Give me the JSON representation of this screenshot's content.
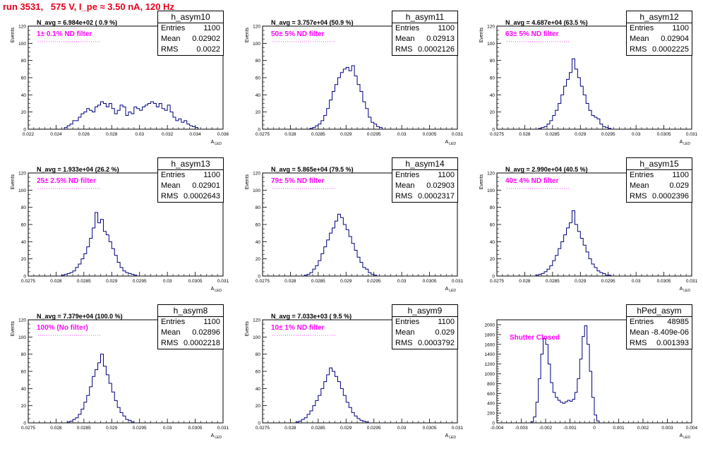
{
  "page": {
    "title": "run 3531,   575 V, I_pe ≈ 3.50 nA, 120 Hz"
  },
  "chart_data": [
    {
      "type": "histogram",
      "name": "h_asym10",
      "xlabel": "A_LED",
      "ylabel": "Events",
      "xlim": [
        0.022,
        0.036
      ],
      "ylim": [
        0,
        120
      ],
      "xticks": [
        0.022,
        0.024,
        0.026,
        0.028,
        0.03,
        0.032,
        0.034,
        0.036
      ],
      "xticklabels": [
        "0.022",
        "0.024",
        "0.026",
        "0.028",
        "0.03",
        "0.032",
        "0.034",
        "0.036"
      ],
      "yticks": [
        0,
        20,
        40,
        60,
        80,
        100,
        120
      ],
      "stats": {
        "entries": "1100",
        "mean": "0.02902",
        "rms": "0.0022"
      },
      "navg": "N_avg = 6.984e+02 ( 0.9 %)",
      "filter": "1± 0.1% ND filter",
      "filter_dots": true,
      "bins_start": 0.0246,
      "bin_width": 0.0002,
      "counts": [
        2,
        4,
        6,
        10,
        10,
        14,
        18,
        20,
        24,
        22,
        20,
        26,
        28,
        32,
        30,
        26,
        30,
        24,
        18,
        22,
        28,
        26,
        16,
        20,
        18,
        26,
        24,
        22,
        26,
        28,
        30,
        32,
        30,
        26,
        30,
        24,
        22,
        28,
        20,
        14,
        10,
        12,
        8,
        10,
        6,
        4,
        3,
        2
      ]
    },
    {
      "type": "histogram",
      "name": "h_asym11",
      "xlabel": "A_LED",
      "ylabel": "Events",
      "xlim": [
        0.0275,
        0.031
      ],
      "ylim": [
        0,
        120
      ],
      "xticks": [
        0.0275,
        0.028,
        0.0285,
        0.029,
        0.0295,
        0.03,
        0.0305,
        0.031
      ],
      "xticklabels": [
        "0.0275",
        "0.028",
        "0.0285",
        "0.029",
        "0.0295",
        "0.03",
        "0.0305",
        "0.031"
      ],
      "yticks": [
        0,
        20,
        40,
        60,
        80,
        100,
        120
      ],
      "stats": {
        "entries": "1100",
        "mean": "0.02913",
        "rms": "0.0002126"
      },
      "navg": "N_avg = 3.757e+04 (50.9 %)",
      "filter": "50± 5% ND filter",
      "filter_dots": true,
      "bins_start": 0.02835,
      "bin_width": 5e-05,
      "counts": [
        1,
        2,
        4,
        6,
        10,
        16,
        24,
        34,
        44,
        52,
        60,
        66,
        70,
        72,
        68,
        74,
        62,
        52,
        44,
        32,
        24,
        14,
        8,
        6,
        3,
        2
      ]
    },
    {
      "type": "histogram",
      "name": "h_asym12",
      "xlabel": "A_LED",
      "ylabel": "Events",
      "xlim": [
        0.0275,
        0.031
      ],
      "ylim": [
        0,
        120
      ],
      "xticks": [
        0.0275,
        0.028,
        0.0285,
        0.029,
        0.0295,
        0.03,
        0.0305,
        0.031
      ],
      "xticklabels": [
        "0.0275",
        "0.028",
        "0.0285",
        "0.029",
        "0.0295",
        "0.03",
        "0.0305",
        "0.031"
      ],
      "yticks": [
        0,
        20,
        40,
        60,
        80,
        100,
        120
      ],
      "stats": {
        "entries": "1100",
        "mean": "0.02904",
        "rms": "0.0002225"
      },
      "navg": "N_avg = 4.687e+04 (63.5 %)",
      "filter": "63± 5% ND filter",
      "filter_dots": true,
      "bins_start": 0.02825,
      "bin_width": 5e-05,
      "counts": [
        1,
        2,
        3,
        6,
        10,
        16,
        22,
        30,
        40,
        50,
        58,
        66,
        82,
        70,
        60,
        50,
        40,
        30,
        22,
        16,
        14,
        12,
        6,
        3,
        2,
        1
      ]
    },
    {
      "type": "histogram",
      "name": "h_asym13",
      "xlabel": "A_LED",
      "ylabel": "Events",
      "xlim": [
        0.0275,
        0.031
      ],
      "ylim": [
        0,
        120
      ],
      "xticks": [
        0.0275,
        0.028,
        0.0285,
        0.029,
        0.0295,
        0.03,
        0.0305,
        0.031
      ],
      "xticklabels": [
        "0.0275",
        "0.028",
        "0.0285",
        "0.029",
        "0.0295",
        "0.03",
        "0.0305",
        "0.031"
      ],
      "yticks": [
        0,
        20,
        40,
        60,
        80,
        100,
        120
      ],
      "stats": {
        "entries": "1100",
        "mean": "0.02901",
        "rms": "0.0002643"
      },
      "navg": "N_avg = 1.933e+04 (26.2 %)",
      "filter": "25± 2.5% ND filter",
      "filter_dots": true,
      "bins_start": 0.0281,
      "bin_width": 5e-05,
      "counts": [
        1,
        2,
        3,
        4,
        6,
        10,
        14,
        20,
        26,
        34,
        44,
        56,
        74,
        62,
        66,
        52,
        48,
        40,
        32,
        24,
        16,
        10,
        6,
        4,
        3,
        2,
        1
      ]
    },
    {
      "type": "histogram",
      "name": "h_asym14",
      "xlabel": "A_LED",
      "ylabel": "Events",
      "xlim": [
        0.0275,
        0.031
      ],
      "ylim": [
        0,
        120
      ],
      "xticks": [
        0.0275,
        0.028,
        0.0285,
        0.029,
        0.0295,
        0.03,
        0.0305,
        0.031
      ],
      "xticklabels": [
        "0.0275",
        "0.028",
        "0.0285",
        "0.029",
        "0.0295",
        "0.03",
        "0.0305",
        "0.031"
      ],
      "yticks": [
        0,
        20,
        40,
        60,
        80,
        100,
        120
      ],
      "stats": {
        "entries": "1100",
        "mean": "0.02903",
        "rms": "0.0002317"
      },
      "navg": "N_avg = 5.865e+04 (79.5 %)",
      "filter": "79± 5% ND filter",
      "filter_dots": true,
      "bins_start": 0.02825,
      "bin_width": 5e-05,
      "counts": [
        1,
        2,
        4,
        8,
        12,
        18,
        26,
        34,
        42,
        50,
        56,
        64,
        72,
        68,
        60,
        54,
        46,
        38,
        30,
        22,
        16,
        10,
        8,
        4,
        2,
        1
      ]
    },
    {
      "type": "histogram",
      "name": "h_asym15",
      "xlabel": "A_LED",
      "ylabel": "Events",
      "xlim": [
        0.0275,
        0.031
      ],
      "ylim": [
        0,
        120
      ],
      "xticks": [
        0.0275,
        0.028,
        0.0285,
        0.029,
        0.0295,
        0.03,
        0.0305,
        0.031
      ],
      "xticklabels": [
        "0.0275",
        "0.028",
        "0.0285",
        "0.029",
        "0.0295",
        "0.03",
        "0.0305",
        "0.031"
      ],
      "yticks": [
        0,
        20,
        40,
        60,
        80,
        100,
        120
      ],
      "stats": {
        "entries": "1100",
        "mean": "0.029",
        "rms": "0.0002396"
      },
      "navg": "N_avg = 2.990e+04 (40.5 %)",
      "filter": "40± 4% ND filter",
      "filter_dots": true,
      "bins_start": 0.0282,
      "bin_width": 5e-05,
      "counts": [
        1,
        2,
        3,
        5,
        8,
        12,
        18,
        24,
        32,
        40,
        48,
        56,
        62,
        76,
        60,
        52,
        44,
        36,
        28,
        20,
        14,
        10,
        6,
        4,
        3,
        1,
        1
      ]
    },
    {
      "type": "histogram",
      "name": "h_asym8",
      "xlabel": "A_LED",
      "ylabel": "Events",
      "xlim": [
        0.0275,
        0.031
      ],
      "ylim": [
        0,
        120
      ],
      "xticks": [
        0.0275,
        0.028,
        0.0285,
        0.029,
        0.0295,
        0.03,
        0.0305,
        0.031
      ],
      "xticklabels": [
        "0.0275",
        "0.028",
        "0.0285",
        "0.029",
        "0.0295",
        "0.03",
        "0.0305",
        "0.031"
      ],
      "yticks": [
        0,
        20,
        40,
        60,
        80,
        100,
        120
      ],
      "stats": {
        "entries": "1100",
        "mean": "0.02896",
        "rms": "0.0002218"
      },
      "navg": "N_avg = 7.379e+04 (100.0 %)",
      "filter": "100% (No filter)",
      "filter_dots": true,
      "bins_start": 0.0282,
      "bin_width": 5e-05,
      "counts": [
        1,
        2,
        4,
        6,
        10,
        16,
        24,
        32,
        42,
        54,
        62,
        70,
        80,
        66,
        56,
        46,
        36,
        26,
        18,
        12,
        8,
        4,
        3,
        1
      ]
    },
    {
      "type": "histogram",
      "name": "h_asym9",
      "xlabel": "A_LED",
      "ylabel": "Events",
      "xlim": [
        0.0275,
        0.031
      ],
      "ylim": [
        0,
        120
      ],
      "xticks": [
        0.0275,
        0.028,
        0.0285,
        0.029,
        0.0295,
        0.03,
        0.0305,
        0.031
      ],
      "xticklabels": [
        "0.0275",
        "0.028",
        "0.0285",
        "0.029",
        "0.0295",
        "0.03",
        "0.0305",
        "0.031"
      ],
      "yticks": [
        0,
        20,
        40,
        60,
        80,
        100,
        120
      ],
      "stats": {
        "entries": "1100",
        "mean": "0.029",
        "rms": "0.0003792"
      },
      "navg": "N_avg = 7.033e+03 ( 9.5 %)",
      "filter": "10± 1% ND filter",
      "filter_dots": true,
      "bins_start": 0.0281,
      "bin_width": 5e-05,
      "counts": [
        1,
        2,
        4,
        6,
        10,
        14,
        20,
        26,
        32,
        40,
        48,
        56,
        64,
        60,
        54,
        48,
        40,
        32,
        24,
        18,
        12,
        8,
        5,
        3,
        2,
        1
      ]
    },
    {
      "type": "histogram",
      "name": "hPed_asym",
      "xlabel": "A_LED",
      "ylabel": "",
      "xlim": [
        -0.004,
        0.004
      ],
      "ylim": [
        0,
        2100
      ],
      "xticks": [
        -0.004,
        -0.003,
        -0.002,
        -0.001,
        0,
        0.001,
        0.002,
        0.003,
        0.004
      ],
      "xticklabels": [
        "-0.004",
        "-0.003",
        "-0.002",
        "-0.001",
        "0",
        "0.001",
        "0.002",
        "0.003",
        "0.004"
      ],
      "yticks": [
        0,
        200,
        400,
        600,
        800,
        1000,
        1200,
        1400,
        1600,
        1800,
        2000
      ],
      "stats": {
        "entries": "48985",
        "mean": "-8.409e-06",
        "rms": "0.001393"
      },
      "navg": "",
      "filter": "Shutter Closed",
      "filter_dots": false,
      "bins_start": -0.0026,
      "bin_width": 0.0001,
      "counts": [
        20,
        120,
        420,
        900,
        1400,
        1720,
        1600,
        1200,
        820,
        620,
        520,
        460,
        420,
        400,
        430,
        460,
        440,
        480,
        620,
        900,
        1300,
        1760,
        1980,
        1600,
        1050,
        520,
        160,
        40
      ]
    }
  ]
}
